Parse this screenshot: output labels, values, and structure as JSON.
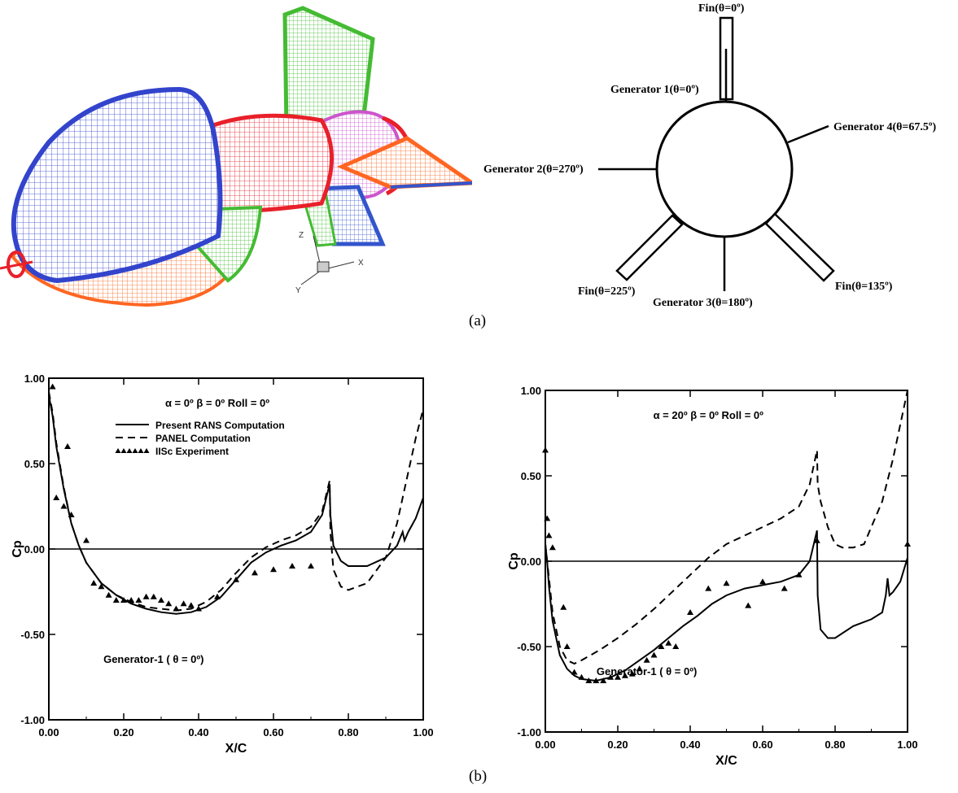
{
  "figure_a": {
    "caption": "(a)",
    "axis_triad": {
      "z": "Z",
      "y": "Y",
      "x": "X"
    },
    "colors": {
      "nose": "#3344cc",
      "forebody_lower": "#ff6622",
      "midbody": "#e8202a",
      "aftbody": "#cc55cc",
      "fin_green": "#44bb33",
      "fin_orange": "#ff6622",
      "fin_blue": "#3355cc"
    },
    "schematic": {
      "labels": {
        "fin_0": "Fin(θ=0º)",
        "gen1": "Generator 1(θ=0º)",
        "gen4": "Generator 4(θ=67.5º)",
        "gen2": "Generator 2(θ=270º)",
        "fin_225": "Fin(θ=225º)",
        "gen3": "Generator 3(θ=180º)",
        "fin_135": "Fin(θ=135º)"
      }
    }
  },
  "figure_b": {
    "caption": "(b)"
  },
  "chart_data": [
    {
      "type": "line",
      "condition": "α = 0º β = 0º Roll = 0º",
      "annotation": "Generator-1 ( θ = 0º)",
      "xlabel": "X/C",
      "ylabel": "Cp",
      "xlim": [
        0,
        1
      ],
      "ylim": [
        -1,
        1
      ],
      "xticks": [
        "0.00",
        "0.20",
        "0.40",
        "0.60",
        "0.80",
        "1.00"
      ],
      "yticks": [
        "1.00",
        "0.50",
        "0.00",
        "-0.50",
        "-1.00"
      ],
      "legend": [
        "Present RANS Computation",
        "PANEL Computation",
        "IISc Experiment"
      ],
      "series": [
        {
          "name": "Present RANS Computation",
          "style": "solid",
          "x": [
            0.0,
            0.01,
            0.02,
            0.04,
            0.06,
            0.08,
            0.1,
            0.14,
            0.18,
            0.22,
            0.26,
            0.3,
            0.34,
            0.38,
            0.42,
            0.46,
            0.5,
            0.54,
            0.58,
            0.62,
            0.66,
            0.7,
            0.73,
            0.75,
            0.752,
            0.76,
            0.78,
            0.8,
            0.85,
            0.9,
            0.93,
            0.945,
            0.95,
            0.96,
            0.98,
            1.0
          ],
          "y": [
            0.9,
            0.78,
            0.6,
            0.35,
            0.15,
            0.02,
            -0.08,
            -0.2,
            -0.27,
            -0.32,
            -0.35,
            -0.37,
            -0.38,
            -0.37,
            -0.34,
            -0.28,
            -0.18,
            -0.08,
            -0.02,
            0.02,
            0.05,
            0.1,
            0.2,
            0.38,
            0.2,
            0.02,
            -0.07,
            -0.1,
            -0.1,
            -0.05,
            0.02,
            0.1,
            0.05,
            0.1,
            0.18,
            0.3
          ]
        },
        {
          "name": "PANEL Computation",
          "style": "dashed",
          "x": [
            0.0,
            0.01,
            0.02,
            0.04,
            0.06,
            0.08,
            0.1,
            0.14,
            0.18,
            0.22,
            0.26,
            0.3,
            0.34,
            0.38,
            0.42,
            0.46,
            0.5,
            0.54,
            0.58,
            0.62,
            0.66,
            0.7,
            0.73,
            0.75,
            0.752,
            0.76,
            0.78,
            0.8,
            0.85,
            0.9,
            0.93,
            0.96,
            0.98,
            1.0
          ],
          "y": [
            0.92,
            0.8,
            0.62,
            0.36,
            0.15,
            0.02,
            -0.08,
            -0.2,
            -0.27,
            -0.31,
            -0.34,
            -0.35,
            -0.36,
            -0.35,
            -0.31,
            -0.24,
            -0.14,
            -0.05,
            0.01,
            0.05,
            0.08,
            0.13,
            0.22,
            0.4,
            0.1,
            -0.12,
            -0.22,
            -0.24,
            -0.2,
            -0.05,
            0.15,
            0.45,
            0.65,
            0.82
          ]
        },
        {
          "name": "IISc Experiment",
          "style": "marker",
          "x": [
            0.01,
            0.02,
            0.04,
            0.05,
            0.06,
            0.1,
            0.12,
            0.14,
            0.16,
            0.18,
            0.2,
            0.22,
            0.24,
            0.26,
            0.28,
            0.3,
            0.32,
            0.34,
            0.36,
            0.38,
            0.4,
            0.45,
            0.5,
            0.55,
            0.6,
            0.65,
            0.7
          ],
          "y": [
            0.95,
            0.3,
            0.25,
            0.6,
            0.2,
            0.05,
            -0.2,
            -0.22,
            -0.27,
            -0.3,
            -0.3,
            -0.3,
            -0.3,
            -0.28,
            -0.28,
            -0.3,
            -0.32,
            -0.35,
            -0.32,
            -0.33,
            -0.35,
            -0.28,
            -0.18,
            -0.14,
            -0.12,
            -0.1,
            -0.1
          ]
        }
      ]
    },
    {
      "type": "line",
      "condition": "α = 20º β = 0º Roll = 0º",
      "annotation": "Generator-1 ( θ = 0º)",
      "xlabel": "X/C",
      "ylabel": "Cp",
      "xlim": [
        0,
        1
      ],
      "ylim": [
        -1,
        1
      ],
      "xticks": [
        "0.00",
        "0.20",
        "0.40",
        "0.60",
        "0.80",
        "1.00"
      ],
      "yticks": [
        "1.00",
        "0.50",
        "0.00",
        "-0.50",
        "-1.00"
      ],
      "series": [
        {
          "name": "Present RANS Computation",
          "style": "solid",
          "x": [
            0.0,
            0.005,
            0.01,
            0.02,
            0.04,
            0.06,
            0.08,
            0.1,
            0.14,
            0.18,
            0.22,
            0.26,
            0.3,
            0.34,
            0.38,
            0.42,
            0.46,
            0.5,
            0.55,
            0.6,
            0.65,
            0.7,
            0.73,
            0.75,
            0.752,
            0.76,
            0.78,
            0.8,
            0.85,
            0.9,
            0.93,
            0.94,
            0.945,
            0.95,
            0.96,
            0.98,
            1.0
          ],
          "y": [
            0.1,
            0.0,
            -0.15,
            -0.35,
            -0.55,
            -0.63,
            -0.67,
            -0.69,
            -0.7,
            -0.68,
            -0.64,
            -0.58,
            -0.52,
            -0.45,
            -0.38,
            -0.32,
            -0.25,
            -0.2,
            -0.16,
            -0.14,
            -0.12,
            -0.08,
            0.0,
            0.18,
            -0.2,
            -0.4,
            -0.45,
            -0.45,
            -0.38,
            -0.34,
            -0.3,
            -0.2,
            -0.1,
            -0.2,
            -0.18,
            -0.12,
            0.02
          ]
        },
        {
          "name": "PANEL Computation",
          "style": "dashed",
          "x": [
            0.0,
            0.01,
            0.02,
            0.04,
            0.06,
            0.08,
            0.1,
            0.15,
            0.2,
            0.25,
            0.3,
            0.35,
            0.4,
            0.45,
            0.5,
            0.55,
            0.6,
            0.65,
            0.7,
            0.73,
            0.75,
            0.752,
            0.76,
            0.78,
            0.8,
            0.82,
            0.85,
            0.88,
            0.9,
            0.93,
            0.96,
            0.98,
            1.0
          ],
          "y": [
            0.1,
            -0.1,
            -0.3,
            -0.5,
            -0.58,
            -0.6,
            -0.58,
            -0.52,
            -0.45,
            -0.37,
            -0.28,
            -0.18,
            -0.08,
            0.02,
            0.1,
            0.15,
            0.2,
            0.25,
            0.32,
            0.45,
            0.65,
            0.45,
            0.35,
            0.2,
            0.1,
            0.08,
            0.08,
            0.1,
            0.2,
            0.35,
            0.6,
            0.8,
            1.0
          ]
        },
        {
          "name": "IISc Experiment",
          "style": "marker",
          "x": [
            0.0,
            0.005,
            0.01,
            0.02,
            0.05,
            0.06,
            0.08,
            0.1,
            0.12,
            0.14,
            0.16,
            0.18,
            0.2,
            0.22,
            0.24,
            0.26,
            0.28,
            0.3,
            0.32,
            0.34,
            0.36,
            0.4,
            0.45,
            0.5,
            0.56,
            0.6,
            0.66,
            0.7,
            0.75,
            1.0
          ],
          "y": [
            0.65,
            0.25,
            0.15,
            0.08,
            -0.27,
            -0.5,
            -0.65,
            -0.68,
            -0.7,
            -0.7,
            -0.7,
            -0.68,
            -0.68,
            -0.67,
            -0.66,
            -0.63,
            -0.58,
            -0.55,
            -0.5,
            -0.48,
            -0.5,
            -0.3,
            -0.16,
            -0.13,
            -0.26,
            -0.12,
            -0.16,
            -0.08,
            0.12,
            0.1
          ]
        }
      ]
    }
  ]
}
